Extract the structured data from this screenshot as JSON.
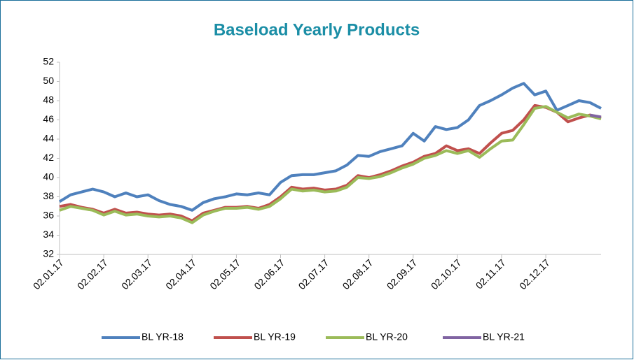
{
  "chart_data": {
    "type": "line",
    "title": "Baseload Yearly Products",
    "categories": [
      "02.01.17",
      null,
      null,
      null,
      "02.02.17",
      null,
      null,
      null,
      "02.03.17",
      null,
      null,
      null,
      "02.04.17",
      null,
      null,
      null,
      "02.05.17",
      null,
      null,
      null,
      "02.06.17",
      null,
      null,
      null,
      "02.07.17",
      null,
      null,
      null,
      "02.08.17",
      null,
      null,
      null,
      "02.09.17",
      null,
      null,
      null,
      "02.10.17",
      null,
      null,
      null,
      "02.11.17",
      null,
      null,
      null,
      "02.12.17",
      null,
      null,
      null,
      null,
      null
    ],
    "series": [
      {
        "name": "BL YR-18",
        "color": "#4f81bd",
        "values": [
          37.5,
          38.2,
          38.5,
          38.8,
          38.5,
          38.0,
          38.4,
          38.0,
          38.2,
          37.6,
          37.2,
          37.0,
          36.6,
          37.4,
          37.8,
          38.0,
          38.3,
          38.2,
          38.4,
          38.2,
          39.5,
          40.2,
          40.3,
          40.3,
          40.5,
          40.7,
          41.3,
          42.3,
          42.2,
          42.7,
          43.0,
          43.3,
          44.6,
          43.8,
          45.3,
          45.0,
          45.2,
          46.0,
          47.5,
          48.0,
          48.6,
          49.3,
          49.8,
          48.6,
          49.0,
          47.0,
          47.5,
          48.0,
          47.8,
          47.2
        ]
      },
      {
        "name": "BL YR-19",
        "color": "#c0504d",
        "values": [
          37.0,
          37.2,
          36.9,
          36.7,
          36.3,
          36.7,
          36.3,
          36.4,
          36.2,
          36.1,
          36.2,
          36.0,
          35.5,
          36.3,
          36.6,
          36.9,
          36.9,
          37.0,
          36.8,
          37.2,
          38.0,
          39.0,
          38.8,
          38.9,
          38.7,
          38.8,
          39.2,
          40.2,
          40.0,
          40.3,
          40.7,
          41.2,
          41.6,
          42.2,
          42.5,
          43.3,
          42.8,
          43.0,
          42.5,
          43.6,
          44.6,
          44.9,
          46.0,
          47.5,
          47.3,
          46.8,
          45.8,
          46.2,
          46.5,
          46.2
        ]
      },
      {
        "name": "BL YR-20",
        "color": "#9bbb59",
        "values": [
          36.6,
          37.0,
          36.8,
          36.6,
          36.1,
          36.5,
          36.1,
          36.2,
          36.0,
          35.9,
          36.0,
          35.8,
          35.3,
          36.1,
          36.5,
          36.8,
          36.8,
          36.9,
          36.7,
          37.0,
          37.8,
          38.8,
          38.6,
          38.7,
          38.5,
          38.6,
          39.0,
          40.0,
          39.9,
          40.1,
          40.5,
          41.0,
          41.4,
          42.0,
          42.3,
          42.8,
          42.5,
          42.8,
          42.1,
          43.0,
          43.8,
          43.9,
          45.5,
          47.2,
          47.4,
          46.8,
          46.2,
          46.6,
          46.4,
          46.1
        ]
      },
      {
        "name": "BL YR-21",
        "color": "#8064a2",
        "values": [
          null,
          null,
          null,
          null,
          null,
          null,
          null,
          null,
          null,
          null,
          null,
          null,
          null,
          null,
          null,
          null,
          null,
          null,
          null,
          null,
          null,
          null,
          null,
          null,
          null,
          null,
          null,
          null,
          null,
          null,
          null,
          null,
          null,
          null,
          null,
          null,
          null,
          null,
          null,
          null,
          null,
          null,
          null,
          null,
          null,
          null,
          null,
          null,
          46.5,
          46.3
        ]
      }
    ],
    "ylim": [
      32,
      52
    ],
    "yticks": [
      32,
      34,
      36,
      38,
      40,
      42,
      44,
      46,
      48,
      50,
      52
    ],
    "grid": false,
    "legend": "bottom"
  }
}
